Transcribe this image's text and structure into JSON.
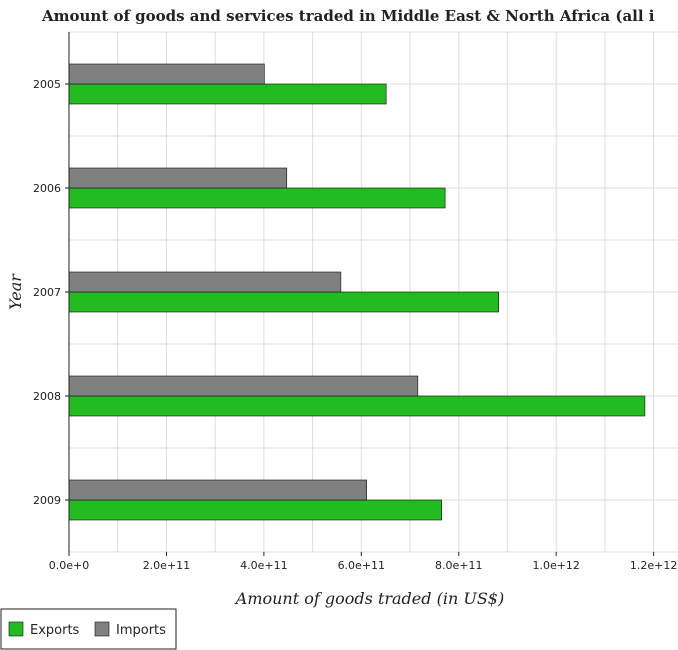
{
  "chart_data": {
    "type": "bar",
    "orientation": "horizontal",
    "title": "Amount of goods and services traded in Middle East & North Africa (all i",
    "xlabel": "Amount of goods traded (in US$)",
    "ylabel": "Year",
    "categories": [
      "2005",
      "2006",
      "2007",
      "2008",
      "2009"
    ],
    "series": [
      {
        "name": "Exports",
        "color": "#22bb22",
        "values": [
          651000000000,
          772000000000,
          882000000000,
          1182000000000,
          765000000000
        ]
      },
      {
        "name": "Imports",
        "color": "#808080",
        "values": [
          401000000000,
          447000000000,
          558000000000,
          716000000000,
          611000000000
        ]
      }
    ],
    "xlim": [
      0,
      1250000000000
    ],
    "xticks": [
      0,
      200000000000,
      400000000000,
      600000000000,
      800000000000,
      1000000000000,
      1200000000000
    ],
    "xtick_labels": [
      "0.0e+0",
      "2.0e+11",
      "4.0e+11",
      "6.0e+11",
      "8.0e+11",
      "1.0e+12",
      "1.2e+12"
    ],
    "grid": true,
    "legend_position": "bottom-left"
  }
}
